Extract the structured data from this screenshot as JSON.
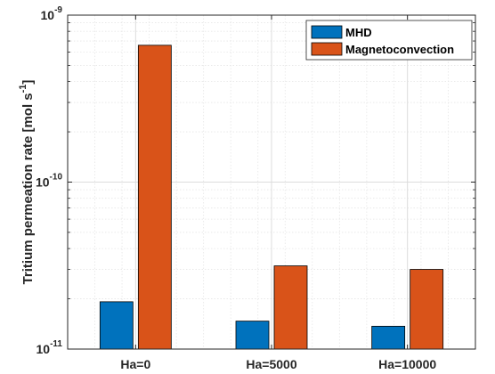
{
  "chart_data": {
    "type": "bar",
    "categories": [
      "Ha=0",
      "Ha=5000",
      "Ha=10000"
    ],
    "series": [
      {
        "name": "MHD",
        "color": "#0072BD",
        "values": [
          1.92e-11,
          1.47e-11,
          1.37e-11
        ]
      },
      {
        "name": "Magnetoconvection",
        "color": "#D95319",
        "values": [
          6.6e-10,
          3.15e-11,
          3e-11
        ]
      }
    ],
    "yscale": "log",
    "ylim": [
      1e-11,
      1e-09
    ],
    "yticks": [
      {
        "value": 1e-11,
        "base": "10",
        "exp": "-11"
      },
      {
        "value": 1e-10,
        "base": "10",
        "exp": "-10"
      },
      {
        "value": 1e-09,
        "base": "10",
        "exp": "-9"
      }
    ],
    "ylabel": {
      "main": "Tritium permeation rate [mol s",
      "sup": "-1",
      "end": "]"
    },
    "xlabel": "",
    "title": "",
    "grid": true,
    "minor_grid": true,
    "legend": "top-right"
  }
}
